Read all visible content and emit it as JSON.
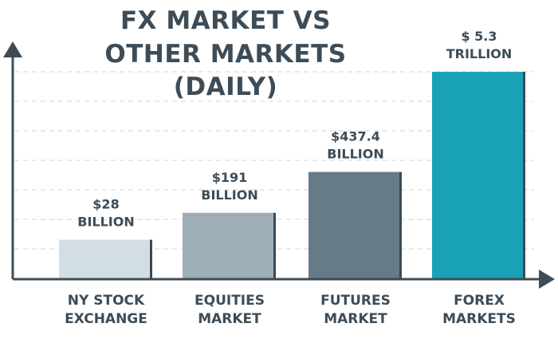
{
  "chart_data": {
    "type": "bar",
    "title_lines": [
      "FX MARKET VS",
      "OTHER MARKETS",
      "(DAILY)"
    ],
    "categories": [
      [
        "NY STOCK",
        "EXCHANGE"
      ],
      [
        "EQUITIES",
        "MARKET"
      ],
      [
        "FUTURES",
        "MARKET"
      ],
      [
        "FOREX",
        "MARKETS"
      ]
    ],
    "value_labels": [
      [
        "$28",
        "BILLION"
      ],
      [
        "$191",
        "BILLION"
      ],
      [
        "$437.4",
        "BILLION"
      ],
      [
        "$ 5.3",
        "TRILLION"
      ]
    ],
    "relative_heights": [
      0.19,
      0.32,
      0.517,
      1.0
    ],
    "bar_colors": [
      "#d3dde4",
      "#9eaeb6",
      "#667a88",
      "#19a2b6"
    ],
    "shadow_color": "#3a4a55",
    "axis_color": "#3d4c57",
    "text_color": "#3d4c57",
    "grid": true
  }
}
